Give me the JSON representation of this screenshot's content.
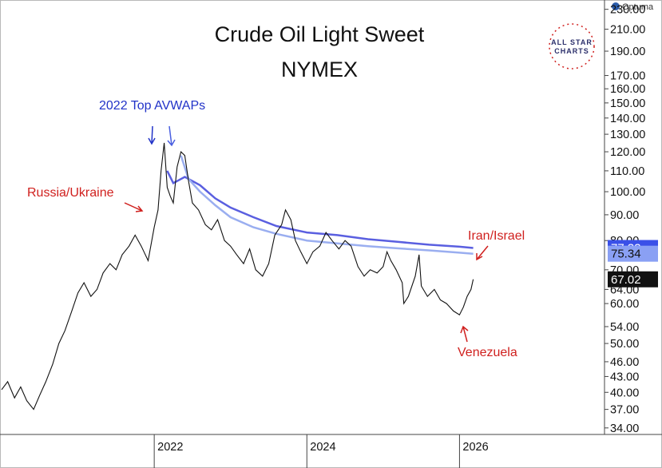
{
  "brand": {
    "optuma": "Optuma",
    "logo_line1": "ALL STAR",
    "logo_line2": "CHARTS"
  },
  "colors": {
    "price": "#111111",
    "avwap1": "#5a5fe0",
    "avwap2": "#9aaef0",
    "badge1": "#3a50e8",
    "badge2": "#8aa0f4",
    "badge3": "#111111",
    "annotation_red": "#d0201e",
    "annotation_blue": "#2233c8"
  },
  "chart_data": {
    "type": "line",
    "title": "Crude Oil Light Sweet",
    "subtitle": "NYMEX",
    "y_scale": "log",
    "ylim": [
      33,
      240
    ],
    "xlim": [
      2020.0,
      2027.9
    ],
    "grid": false,
    "y_ticks": [
      "230.00",
      "210.00",
      "190.00",
      "170.00",
      "160.00",
      "150.00",
      "140.00",
      "130.00",
      "120.00",
      "110.00",
      "100.00",
      "90.00",
      "80.00",
      "70.00",
      "64.00",
      "60.00",
      "54.00",
      "50.00",
      "46.00",
      "43.00",
      "40.00",
      "37.00",
      "34.00"
    ],
    "y_tick_values": [
      230,
      210,
      190,
      170,
      160,
      150,
      140,
      130,
      120,
      110,
      100,
      90,
      80,
      70,
      64,
      60,
      54,
      50,
      46,
      43,
      40,
      37,
      34
    ],
    "x_ticks": [
      "2022",
      "2024",
      "2026"
    ],
    "x_tick_values": [
      2022.0,
      2024.0,
      2026.0
    ],
    "series": [
      {
        "key": "price",
        "x": [
          2020.0,
          2020.08,
          2020.17,
          2020.25,
          2020.33,
          2020.42,
          2020.5,
          2020.58,
          2020.67,
          2020.75,
          2020.83,
          2020.92,
          2021.0,
          2021.08,
          2021.17,
          2021.25,
          2021.33,
          2021.42,
          2021.5,
          2021.58,
          2021.67,
          2021.75,
          2021.83,
          2021.92,
          2022.0,
          2022.05,
          2022.09,
          2022.13,
          2022.17,
          2022.21,
          2022.25,
          2022.3,
          2022.35,
          2022.4,
          2022.45,
          2022.5,
          2022.58,
          2022.67,
          2022.75,
          2022.83,
          2022.92,
          2023.0,
          2023.08,
          2023.17,
          2023.25,
          2023.33,
          2023.42,
          2023.5,
          2023.58,
          2023.67,
          2023.72,
          2023.79,
          2023.85,
          2023.92,
          2024.0,
          2024.08,
          2024.17,
          2024.25,
          2024.33,
          2024.42,
          2024.5,
          2024.58,
          2024.67,
          2024.75,
          2024.83,
          2024.92,
          2025.0,
          2025.05,
          2025.1,
          2025.17,
          2025.25,
          2025.27,
          2025.33,
          2025.42,
          2025.47,
          2025.5,
          2025.58,
          2025.67,
          2025.75,
          2025.83,
          2025.92,
          2026.0,
          2026.05,
          2026.1,
          2026.15,
          2026.18
        ],
        "y": [
          40.5,
          42.0,
          39.0,
          41.0,
          38.5,
          37.0,
          39.5,
          42.0,
          45.5,
          50.0,
          53.0,
          58.0,
          63.0,
          66.0,
          62.0,
          64.0,
          69.0,
          72.0,
          70.0,
          75.0,
          78.0,
          82.0,
          78.0,
          73.0,
          85.0,
          92.0,
          110.0,
          125.0,
          102.0,
          98.0,
          95.0,
          112.0,
          120.0,
          118.0,
          105.0,
          95.0,
          92.0,
          86.0,
          84.0,
          88.0,
          80.0,
          78.0,
          75.0,
          72.0,
          77.0,
          70.0,
          68.0,
          72.0,
          82.0,
          86.0,
          92.0,
          88.0,
          80.0,
          76.0,
          72.0,
          76.0,
          78.0,
          83.0,
          80.0,
          77.0,
          80.0,
          78.0,
          71.0,
          68.0,
          70.0,
          69.0,
          71.0,
          76.0,
          73.0,
          70.0,
          66.0,
          60.0,
          62.0,
          68.0,
          75.0,
          65.0,
          62.0,
          64.0,
          61.0,
          60.0,
          58.0,
          57.0,
          59.0,
          62.0,
          64.0,
          67.02
        ]
      },
      {
        "key": "avwap1",
        "x": [
          2022.17,
          2022.25,
          2022.4,
          2022.6,
          2022.8,
          2023.0,
          2023.3,
          2023.6,
          2024.0,
          2024.4,
          2024.8,
          2025.2,
          2025.6,
          2026.0,
          2026.18
        ],
        "y": [
          110.0,
          104.0,
          107.0,
          103.0,
          97.0,
          93.0,
          89.0,
          85.5,
          83.0,
          82.0,
          80.5,
          79.5,
          78.5,
          77.8,
          77.33
        ]
      },
      {
        "key": "avwap2",
        "x": [
          2022.35,
          2022.45,
          2022.6,
          2022.8,
          2023.0,
          2023.3,
          2023.6,
          2024.0,
          2024.4,
          2024.8,
          2025.2,
          2025.6,
          2026.0,
          2026.18
        ],
        "y": [
          118.0,
          106.0,
          100.0,
          94.0,
          89.0,
          85.0,
          82.5,
          80.0,
          79.0,
          78.0,
          77.2,
          76.5,
          75.7,
          75.34
        ]
      }
    ],
    "value_badges": [
      {
        "label": "77.33",
        "value": 77.33,
        "color_key": "badge1"
      },
      {
        "label": "75.34",
        "value": 75.34,
        "color_key": "badge2"
      },
      {
        "label": "67.02",
        "value": 67.02,
        "color_key": "badge3"
      }
    ],
    "annotations": [
      {
        "text": "2022 Top AVWAPs",
        "color": "blue"
      },
      {
        "text": "Russia/Ukraine",
        "color": "red"
      },
      {
        "text": "Iran/Israel",
        "color": "red"
      },
      {
        "text": "Venezuela",
        "color": "red"
      }
    ]
  }
}
